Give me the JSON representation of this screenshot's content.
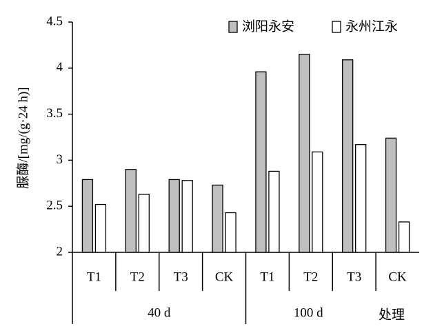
{
  "chart_data": {
    "type": "bar",
    "y_label": "脲酶/[mg/(g·24 h)]",
    "x_label": "处理",
    "categories": [
      "T1",
      "T2",
      "T3",
      "CK",
      "T1",
      "T2",
      "T3",
      "CK"
    ],
    "groups": [
      "40 d",
      "100 d"
    ],
    "series": [
      {
        "name": "浏阳永安",
        "color": "#bfbfbf",
        "values": [
          2.79,
          2.9,
          2.79,
          2.73,
          3.96,
          4.15,
          4.09,
          3.24
        ]
      },
      {
        "name": "永州江永",
        "color": "#ffffff",
        "values": [
          2.52,
          2.63,
          2.78,
          2.43,
          2.88,
          3.09,
          3.17,
          2.33
        ]
      }
    ],
    "ylim": [
      2,
      4.5
    ],
    "yticks": [
      2,
      2.5,
      3,
      3.5,
      4,
      4.5
    ]
  }
}
